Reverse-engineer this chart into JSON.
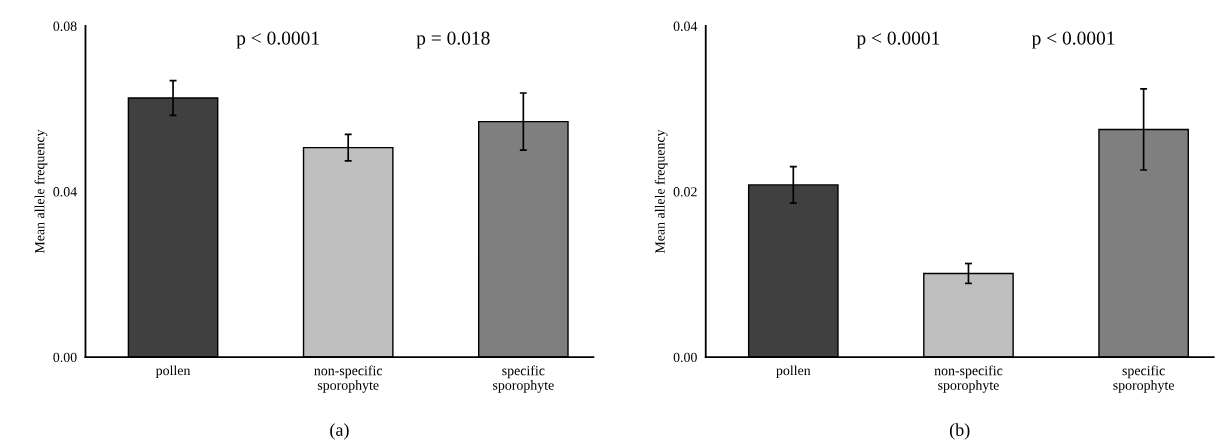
{
  "chart_data": [
    {
      "type": "bar",
      "categories": [
        "pollen",
        "non-specific\nsporophyte",
        "specific\nsporophyte"
      ],
      "values": [
        0.0626,
        0.0506,
        0.0569
      ],
      "errors": [
        0.0042,
        0.0032,
        0.0069
      ],
      "colors": [
        "#404040",
        "#bfbfbf",
        "#7f7f7f"
      ],
      "ylabel": "Mean allele frequency",
      "ylim": [
        0,
        0.08
      ],
      "yticks": [
        {
          "value": 0,
          "label": "0.00"
        },
        0.04,
        0.08
      ],
      "annotations": [
        "p < 0.0001",
        "p = 0.018",
        "(a)"
      ],
      "grid": false,
      "legend": false
    },
    {
      "type": "bar",
      "categories": [
        "pollen",
        "non-specific\nsporophyte",
        "specific\nsporophyte"
      ],
      "values": [
        0.0208,
        0.0101,
        0.0275
      ],
      "errors": [
        0.0022,
        0.0012,
        0.0049
      ],
      "colors": [
        "#404040",
        "#bfbfbf",
        "#7f7f7f"
      ],
      "ylabel": "Mean allele frequency",
      "ylim": [
        0,
        0.04
      ],
      "yticks": [
        {
          "value": 0,
          "label": "0.00"
        },
        0.02,
        0.04
      ],
      "annotations": [
        "p < 0.0001",
        "p < 0.0001",
        "(b)"
      ],
      "grid": false,
      "legend": false
    }
  ]
}
